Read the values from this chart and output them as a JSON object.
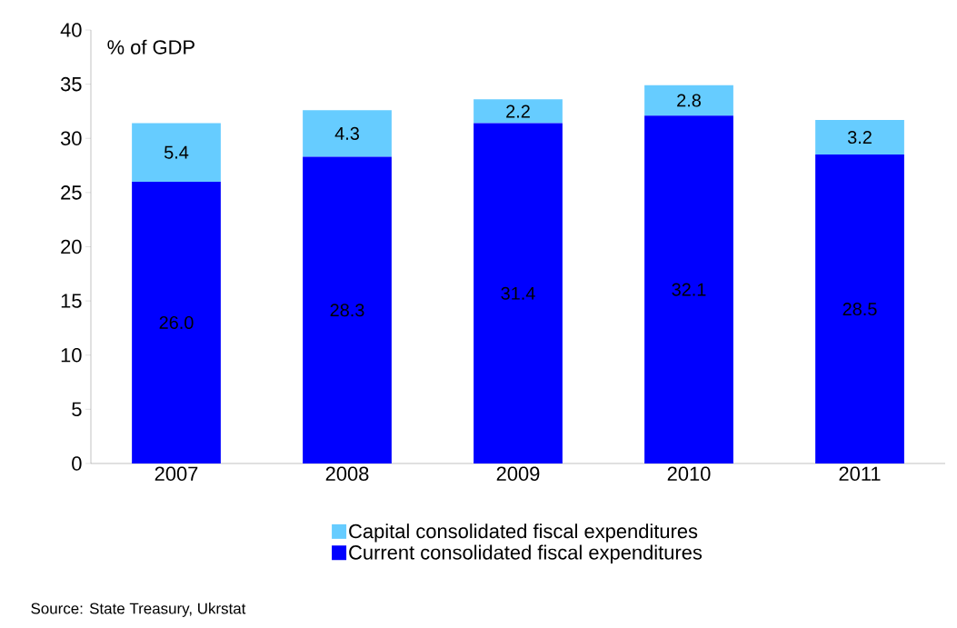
{
  "chart_data": {
    "type": "bar",
    "stacked": true,
    "ylabel": "% of GDP",
    "categories": [
      "2007",
      "2008",
      "2009",
      "2010",
      "2011"
    ],
    "series": [
      {
        "name": "Current consolidated fiscal expenditures",
        "color": "#0000ff",
        "values": [
          26.0,
          28.3,
          31.4,
          32.1,
          28.5
        ],
        "value_labels": [
          "26.0",
          "28.3",
          "31.4",
          "32.1",
          "28.5"
        ]
      },
      {
        "name": "Capital consolidated fiscal expenditures",
        "color": "#66ccff",
        "values": [
          5.4,
          4.3,
          2.2,
          2.8,
          3.2
        ],
        "value_labels": [
          "5.4",
          "4.3",
          "2.2",
          "2.8",
          "3.2"
        ]
      }
    ],
    "ylim": [
      0,
      40
    ],
    "yticks": [
      0,
      5,
      10,
      15,
      20,
      25,
      30,
      35,
      40
    ],
    "grid": false,
    "legend": "bottom",
    "annotations": [
      "Source:  State Treasury, Ukrstat"
    ]
  }
}
